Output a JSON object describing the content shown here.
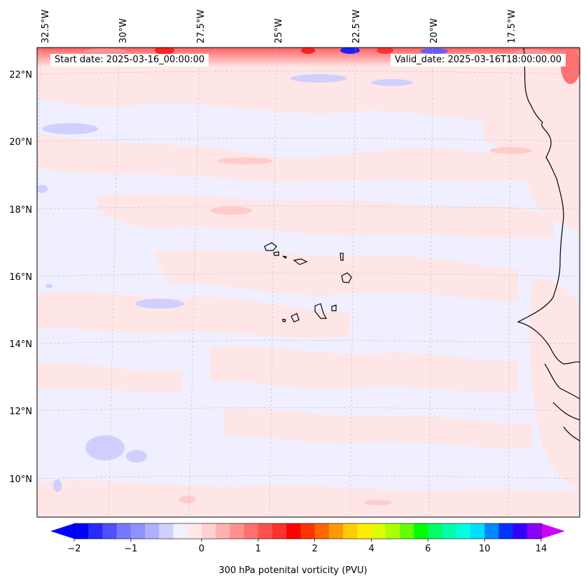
{
  "header": {
    "start_label": "Start date: 2025-03-16_00:00:00",
    "valid_label": "Valid_date: 2025-03-16T18:00:00.00"
  },
  "axes": {
    "lon_labels": [
      "32.5°W",
      "30°W",
      "27.5°W",
      "25°W",
      "22.5°W",
      "20°W",
      "17.5°W"
    ],
    "lat_labels": [
      "22°N",
      "20°N",
      "18°N",
      "16°N",
      "14°N",
      "12°N",
      "10°N"
    ]
  },
  "colorbar": {
    "title": "300 hPa potenital vorticity (PVU)",
    "tick_labels": [
      "−2",
      "−1",
      "0",
      "1",
      "2",
      "4",
      "6",
      "10",
      "14"
    ],
    "colors": [
      "#0000ff",
      "#2a2aff",
      "#5050ff",
      "#7878ff",
      "#9090ff",
      "#b0b0ff",
      "#d0d0ff",
      "#f0f0ff",
      "#ffe8e8",
      "#ffd0d0",
      "#ffb0b0",
      "#ff9090",
      "#ff7070",
      "#ff5050",
      "#ff3030",
      "#ff0000",
      "#ff3300",
      "#ff6600",
      "#ff9900",
      "#ffcc00",
      "#ffee00",
      "#ddff00",
      "#aaff00",
      "#66ff00",
      "#00ff00",
      "#00ff66",
      "#00ffaa",
      "#00ffdd",
      "#00ddff",
      "#0088ff",
      "#0033ff",
      "#3300ff",
      "#8800ff"
    ],
    "under_color": "#0000ff",
    "over_color": "#cc00ff"
  },
  "map": {
    "background_color": "#efefff",
    "positive_color": "#ffe6e6",
    "negative_color": "#d0d0ff"
  }
}
